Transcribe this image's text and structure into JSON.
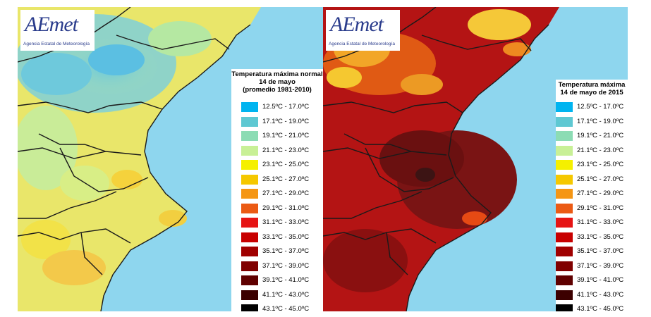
{
  "maps": [
    {
      "id": "normal",
      "logo": {
        "wordmark": "AEmet",
        "subtitle": "Agencia Estatal de Meteorología"
      },
      "legend": {
        "title_lines": [
          "Temperatura máxima normal",
          "14 de mayo",
          "(promedio 1981-2010)"
        ]
      }
    },
    {
      "id": "2015",
      "logo": {
        "wordmark": "AEmet",
        "subtitle": "Agencia Estatal de Meteorología"
      },
      "legend": {
        "title_lines": [
          "Temperatura máxima",
          "14 de mayo de 2015"
        ]
      }
    }
  ],
  "legend_classes": [
    {
      "range": "12.5ºC - 17.0ºC",
      "color": "#00b4f0"
    },
    {
      "range": "17.1ºC - 19.0ºC",
      "color": "#5ec8d2"
    },
    {
      "range": "19.1ºC - 21.0ºC",
      "color": "#8cdcb4"
    },
    {
      "range": "21.1ºC - 23.0ºC",
      "color": "#c8f096"
    },
    {
      "range": "23.1ºC - 25.0ºC",
      "color": "#f5f000"
    },
    {
      "range": "25.1ºC - 27.0ºC",
      "color": "#f5c800"
    },
    {
      "range": "27.1ºC - 29.0ºC",
      "color": "#f59614"
    },
    {
      "range": "29.1ºC - 31.0ºC",
      "color": "#eb5a14"
    },
    {
      "range": "31.1ºC - 33.0ºC",
      "color": "#e61414"
    },
    {
      "range": "33.1ºC - 35.0ºC",
      "color": "#c80000"
    },
    {
      "range": "35.1ºC - 37.0ºC",
      "color": "#a00000"
    },
    {
      "range": "37.1ºC - 39.0ºC",
      "color": "#800000"
    },
    {
      "range": "39.1ºC - 41.0ºC",
      "color": "#5f0000"
    },
    {
      "range": "41.1ºC - 43.0ºC",
      "color": "#3c0000"
    },
    {
      "range": "43.1ºC - 45.0ºC",
      "color": "#000000"
    }
  ],
  "sea_color": "#8ed6ee"
}
